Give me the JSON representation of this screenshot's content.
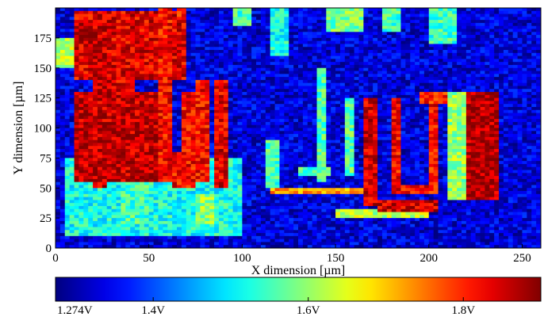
{
  "chart_data": {
    "type": "heatmap",
    "title": "",
    "xlabel": "X dimension [µm]",
    "ylabel": "Y dimension [µm]",
    "xlim": [
      0,
      260
    ],
    "ylim": [
      0,
      200
    ],
    "x_ticks": [
      0,
      50,
      100,
      150,
      200,
      250
    ],
    "y_ticks": [
      0,
      25,
      50,
      75,
      100,
      125,
      150,
      175
    ],
    "grid": false,
    "colorbar": {
      "colormap": "jet",
      "min": 1.274,
      "max": 1.9,
      "unit": "V",
      "tick_values": [
        1.274,
        1.4,
        1.6,
        1.8
      ],
      "tick_labels": [
        "1.274V",
        "1.4V",
        "1.6V",
        "1.8V"
      ]
    },
    "background_value": 1.33,
    "regions": [
      {
        "x": [
          5,
          100
        ],
        "y": [
          10,
          75
        ],
        "value": 1.52
      },
      {
        "x": [
          10,
          70
        ],
        "y": [
          140,
          198
        ],
        "value": 1.84
      },
      {
        "x": [
          10,
          30
        ],
        "y": [
          170,
          190
        ],
        "value": 1.86
      },
      {
        "x": [
          0,
          10
        ],
        "y": [
          150,
          175
        ],
        "value": 1.62
      },
      {
        "x": [
          20,
          28
        ],
        "y": [
          50,
          175
        ],
        "value": 1.86
      },
      {
        "x": [
          28,
          42
        ],
        "y": [
          130,
          165
        ],
        "value": 1.84
      },
      {
        "x": [
          10,
          55
        ],
        "y": [
          55,
          130
        ],
        "value": 1.86
      },
      {
        "x": [
          55,
          63
        ],
        "y": [
          55,
          200
        ],
        "value": 1.82
      },
      {
        "x": [
          63,
          75
        ],
        "y": [
          50,
          80
        ],
        "value": 1.82
      },
      {
        "x": [
          67,
          75
        ],
        "y": [
          80,
          130
        ],
        "value": 1.82
      },
      {
        "x": [
          75,
          82
        ],
        "y": [
          55,
          140
        ],
        "value": 1.82
      },
      {
        "x": [
          85,
          93
        ],
        "y": [
          50,
          140
        ],
        "value": 1.84
      },
      {
        "x": [
          65,
          70
        ],
        "y": [
          190,
          200
        ],
        "value": 1.8
      },
      {
        "x": [
          35,
          50
        ],
        "y": [
          20,
          55
        ],
        "value": 1.55
      },
      {
        "x": [
          75,
          85
        ],
        "y": [
          20,
          45
        ],
        "value": 1.6
      },
      {
        "x": [
          115,
          165
        ],
        "y": [
          45,
          50
        ],
        "value": 1.72
      },
      {
        "x": [
          112,
          120
        ],
        "y": [
          50,
          90
        ],
        "value": 1.55
      },
      {
        "x": [
          140,
          146
        ],
        "y": [
          55,
          150
        ],
        "value": 1.56
      },
      {
        "x": [
          155,
          160
        ],
        "y": [
          60,
          125
        ],
        "value": 1.56
      },
      {
        "x": [
          130,
          148
        ],
        "y": [
          60,
          68
        ],
        "value": 1.56
      },
      {
        "x": [
          150,
          200
        ],
        "y": [
          25,
          32
        ],
        "value": 1.62
      },
      {
        "x": [
          165,
          173
        ],
        "y": [
          35,
          125
        ],
        "value": 1.85
      },
      {
        "x": [
          173,
          205
        ],
        "y": [
          30,
          40
        ],
        "value": 1.85
      },
      {
        "x": [
          180,
          186
        ],
        "y": [
          45,
          125
        ],
        "value": 1.82
      },
      {
        "x": [
          186,
          205
        ],
        "y": [
          45,
          52
        ],
        "value": 1.82
      },
      {
        "x": [
          200,
          205
        ],
        "y": [
          52,
          130
        ],
        "value": 1.82
      },
      {
        "x": [
          195,
          210
        ],
        "y": [
          120,
          130
        ],
        "value": 1.8
      },
      {
        "x": [
          210,
          220
        ],
        "y": [
          40,
          130
        ],
        "value": 1.6
      },
      {
        "x": [
          220,
          238
        ],
        "y": [
          40,
          130
        ],
        "value": 1.87
      },
      {
        "x": [
          95,
          105
        ],
        "y": [
          185,
          200
        ],
        "value": 1.55
      },
      {
        "x": [
          115,
          125
        ],
        "y": [
          160,
          200
        ],
        "value": 1.52
      },
      {
        "x": [
          145,
          165
        ],
        "y": [
          180,
          200
        ],
        "value": 1.58
      },
      {
        "x": [
          175,
          185
        ],
        "y": [
          180,
          200
        ],
        "value": 1.55
      },
      {
        "x": [
          200,
          215
        ],
        "y": [
          170,
          200
        ],
        "value": 1.55
      }
    ]
  }
}
